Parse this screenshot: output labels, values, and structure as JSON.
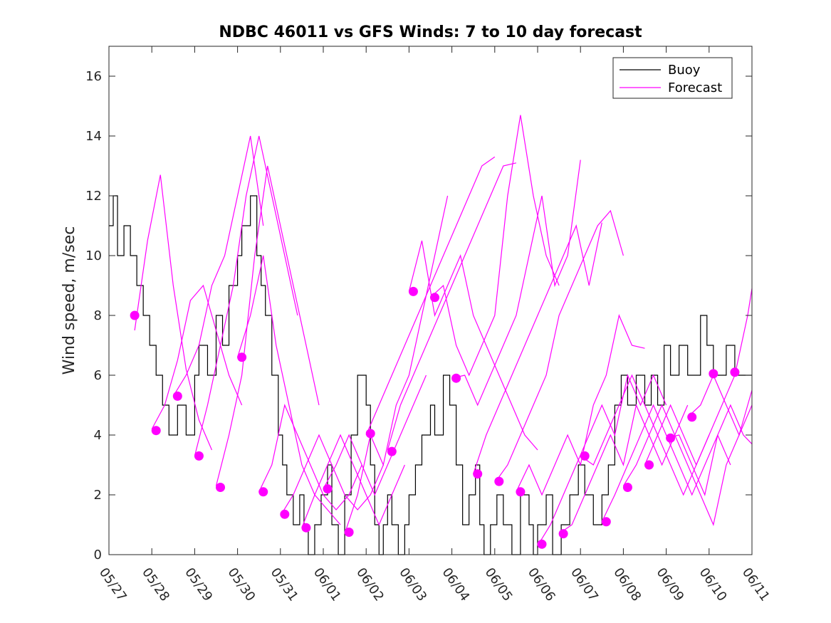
{
  "chart_data": {
    "type": "line",
    "title": "NDBC 46011 vs GFS Winds: 7 to 10 day forecast",
    "xlabel": "",
    "ylabel": "Wind speed, m/sec",
    "ylim": [
      0,
      17
    ],
    "xlim": [
      0,
      15
    ],
    "x_tick_labels": [
      "05/27",
      "05/28",
      "05/29",
      "05/30",
      "05/31",
      "06/01",
      "06/02",
      "06/03",
      "06/04",
      "06/05",
      "06/06",
      "06/07",
      "06/08",
      "06/09",
      "06/10",
      "06/11"
    ],
    "y_ticks": [
      0,
      2,
      4,
      6,
      8,
      10,
      12,
      14,
      16
    ],
    "legend": {
      "position": "top-right",
      "entries": [
        "Buoy",
        "Forecast"
      ]
    },
    "colors": {
      "buoy": "#000000",
      "forecast": "#ff00ff",
      "axes": "#262626"
    },
    "series": [
      {
        "name": "Buoy",
        "x": [
          0,
          0.1,
          0.2,
          0.35,
          0.5,
          0.65,
          0.8,
          0.95,
          1.1,
          1.25,
          1.4,
          1.5,
          1.6,
          1.8,
          2.0,
          2.1,
          2.3,
          2.5,
          2.65,
          2.8,
          3.0,
          3.1,
          3.3,
          3.45,
          3.55,
          3.65,
          3.8,
          3.95,
          4.05,
          4.15,
          4.3,
          4.45,
          4.55,
          4.65,
          4.8,
          4.95,
          5.1,
          5.2,
          5.35,
          5.5,
          5.65,
          5.8,
          6.0,
          6.1,
          6.2,
          6.3,
          6.4,
          6.5,
          6.6,
          6.75,
          6.9,
          7.0,
          7.15,
          7.3,
          7.5,
          7.6,
          7.8,
          7.95,
          8.1,
          8.25,
          8.4,
          8.55,
          8.65,
          8.75,
          8.9,
          9.05,
          9.2,
          9.4,
          9.6,
          9.8,
          9.9,
          10.0,
          10.2,
          10.35,
          10.55,
          10.75,
          10.95,
          11.1,
          11.3,
          11.5,
          11.65,
          11.8,
          11.95,
          12.1,
          12.3,
          12.5,
          12.65,
          12.8,
          12.95,
          13.1,
          13.3,
          13.5,
          13.65,
          13.8,
          13.95,
          14.1,
          14.25,
          14.4,
          14.6,
          14.8,
          15.0
        ],
        "values": [
          11,
          12,
          10,
          11,
          10,
          9,
          8,
          7,
          6,
          5,
          4,
          4,
          5,
          4,
          6,
          7,
          6,
          8,
          7,
          9,
          10,
          11,
          12,
          10,
          9,
          8,
          6,
          4,
          3,
          2,
          1,
          2,
          1,
          0,
          1,
          2,
          3,
          1,
          0,
          2,
          4,
          6,
          5,
          3,
          1,
          0,
          1,
          2,
          1,
          0,
          1,
          2,
          3,
          4,
          5,
          4,
          6,
          5,
          3,
          1,
          2,
          3,
          1,
          0,
          1,
          2,
          1,
          0,
          2,
          1,
          0,
          1,
          2,
          0,
          1,
          2,
          3,
          2,
          1,
          2,
          3,
          5,
          6,
          5,
          6,
          5,
          6,
          5,
          7,
          6,
          7,
          6,
          6,
          8,
          7,
          6,
          6,
          7,
          6,
          6,
          6
        ]
      },
      {
        "name": "Forecast",
        "runs": [
          {
            "x": [
              0.6,
              0.9,
              1.2,
              1.5,
              1.8,
              2.1,
              2.4
            ],
            "values": [
              7.5,
              10.5,
              12.7,
              9,
              6.2,
              4.5,
              3.5
            ]
          },
          {
            "x": [
              1.0,
              1.3,
              1.6,
              1.9,
              2.2,
              2.5,
              2.8,
              3.1
            ],
            "values": [
              4.2,
              5,
              6.5,
              8.5,
              9,
              7.5,
              6,
              5
            ]
          },
          {
            "x": [
              1.5,
              1.8,
              2.1,
              2.4,
              2.7,
              3.0,
              3.3,
              3.6
            ],
            "values": [
              5.3,
              6,
              7,
              9,
              10,
              12,
              14,
              11
            ]
          },
          {
            "x": [
              2.0,
              2.3,
              2.6,
              2.9,
              3.2,
              3.5,
              3.8,
              4.1,
              4.4
            ],
            "values": [
              3.3,
              5,
              7,
              9,
              12,
              14,
              12,
              10,
              8
            ]
          },
          {
            "x": [
              2.5,
              2.8,
              3.1,
              3.4,
              3.7,
              4.0,
              4.3,
              4.6,
              4.9
            ],
            "values": [
              2.3,
              4,
              6,
              10,
              13,
              11,
              9,
              7,
              5
            ]
          },
          {
            "x": [
              3.0,
              3.3,
              3.6,
              3.9,
              4.2,
              4.5,
              4.8,
              5.1,
              5.4
            ],
            "values": [
              6.6,
              8,
              10,
              7,
              5,
              3,
              2,
              1.5,
              1
            ]
          },
          {
            "x": [
              3.5,
              3.8,
              4.1,
              4.4,
              4.7,
              5.0,
              5.3,
              5.6,
              5.9
            ],
            "values": [
              2.1,
              3,
              5,
              4,
              3,
              2,
              1.5,
              2,
              3
            ]
          },
          {
            "x": [
              4.0,
              4.3,
              4.6,
              4.9,
              5.2,
              5.5,
              5.8,
              6.1,
              6.4
            ],
            "values": [
              1.3,
              2,
              3,
              4,
              3,
              2,
              1.5,
              2,
              3
            ]
          },
          {
            "x": [
              4.5,
              4.8,
              5.1,
              5.4,
              5.7,
              6.0,
              6.3,
              6.6,
              6.9
            ],
            "values": [
              0.9,
              2,
              3,
              4,
              3,
              2,
              1,
              2,
              3
            ]
          },
          {
            "x": [
              5.0,
              5.3,
              5.6,
              5.9,
              6.2,
              6.5,
              6.8,
              7.1,
              7.4
            ],
            "values": [
              2.2,
              3,
              4,
              3,
              2,
              3,
              4,
              5,
              6
            ]
          },
          {
            "x": [
              5.5,
              5.8,
              6.1,
              6.4,
              6.7,
              7.0,
              7.3,
              7.6,
              7.9
            ],
            "values": [
              0.7,
              2,
              4,
              3,
              5,
              6,
              8,
              10,
              12
            ]
          },
          {
            "x": [
              6.0,
              6.3,
              6.6,
              6.9,
              7.2,
              7.5,
              7.8,
              8.1,
              8.4,
              8.7,
              9.0
            ],
            "values": [
              4.0,
              5,
              6,
              7,
              8,
              9,
              10,
              11,
              12,
              13,
              13.3
            ]
          },
          {
            "x": [
              6.5,
              6.8,
              7.1,
              7.4,
              7.7,
              8.0,
              8.3,
              8.6,
              8.9,
              9.2,
              9.5
            ],
            "values": [
              3.5,
              5,
              6,
              7,
              8,
              9,
              10,
              11,
              12,
              13,
              13.1
            ]
          },
          {
            "x": [
              7.0,
              7.3,
              7.6,
              7.9,
              8.2,
              8.5,
              8.8,
              9.1,
              9.4,
              9.7,
              10.0
            ],
            "values": [
              8.8,
              10.5,
              8,
              9,
              10,
              8,
              7,
              6,
              5,
              4,
              3.5
            ]
          },
          {
            "x": [
              7.5,
              7.8,
              8.1,
              8.4,
              8.7,
              9.0,
              9.3,
              9.6,
              9.9,
              10.2,
              10.5
            ],
            "values": [
              8.6,
              9,
              7,
              6,
              7,
              8,
              12,
              14.7,
              12,
              10,
              9
            ]
          },
          {
            "x": [
              8.0,
              8.3,
              8.6,
              8.9,
              9.2,
              9.5,
              9.8,
              10.1,
              10.4,
              10.7,
              11.0
            ],
            "values": [
              5.9,
              6,
              5,
              6,
              7,
              8,
              10,
              12,
              9,
              10,
              13.2
            ]
          },
          {
            "x": [
              8.5,
              8.8,
              9.1,
              9.4,
              9.7,
              10.0,
              10.3,
              10.6,
              10.9,
              11.2,
              11.5
            ],
            "values": [
              2.7,
              4,
              5,
              6,
              7,
              8,
              9,
              10,
              11,
              9,
              11.1
            ]
          },
          {
            "x": [
              9.0,
              9.3,
              9.6,
              9.9,
              10.2,
              10.5,
              10.8,
              11.1,
              11.4,
              11.7,
              12.0
            ],
            "values": [
              2.4,
              3,
              4,
              5,
              6,
              8,
              9,
              10,
              11,
              11.5,
              10
            ]
          },
          {
            "x": [
              9.5,
              9.8,
              10.1,
              10.4,
              10.7,
              11.0,
              11.3,
              11.6,
              11.9,
              12.2,
              12.5
            ],
            "values": [
              2.1,
              3,
              2,
              3,
              4,
              3,
              5,
              6,
              8,
              7,
              6.9
            ]
          },
          {
            "x": [
              10.0,
              10.3,
              10.6,
              10.9,
              11.2,
              11.5,
              11.8,
              12.1,
              12.4,
              12.7,
              13.0
            ],
            "values": [
              0.3,
              1,
              2,
              3,
              4,
              5,
              4,
              6,
              5,
              6,
              5
            ]
          },
          {
            "x": [
              10.5,
              10.8,
              11.1,
              11.4,
              11.7,
              12.0,
              12.3,
              12.6,
              12.9,
              13.2,
              13.5
            ],
            "values": [
              0.7,
              1,
              2,
              3,
              4,
              3,
              5,
              4,
              3,
              4,
              5
            ]
          },
          {
            "x": [
              11.0,
              11.3,
              11.6,
              11.9,
              12.2,
              12.5,
              12.8,
              13.1,
              13.4,
              13.7,
              14.0
            ],
            "values": [
              3.3,
              3,
              4,
              5,
              6,
              5,
              4,
              3,
              2,
              3,
              4
            ]
          },
          {
            "x": [
              11.5,
              11.8,
              12.1,
              12.4,
              12.7,
              13.0,
              13.3,
              13.6,
              13.9,
              14.2,
              14.5
            ],
            "values": [
              1.1,
              2,
              3,
              4,
              5,
              4,
              3,
              2,
              3,
              4,
              3
            ]
          },
          {
            "x": [
              12.0,
              12.3,
              12.6,
              12.9,
              13.2,
              13.5,
              13.8,
              14.1,
              14.4,
              14.7,
              15.0
            ],
            "values": [
              2.3,
              3,
              4,
              5,
              4,
              3,
              2,
              1,
              3,
              4,
              5
            ]
          },
          {
            "x": [
              12.5,
              12.8,
              13.1,
              13.4,
              13.7,
              14.0,
              14.3,
              14.6,
              14.9,
              15.0
            ],
            "values": [
              3.0,
              4,
              5,
              4,
              3,
              4,
              5,
              6,
              8,
              8.9
            ]
          },
          {
            "x": [
              13.0,
              13.3,
              13.6,
              13.9,
              14.2,
              14.5,
              14.8,
              15.0
            ],
            "values": [
              3.9,
              4,
              3,
              2,
              4,
              5,
              4,
              3.7
            ]
          },
          {
            "x": [
              13.5,
              13.8,
              14.1,
              14.4,
              14.7,
              15.0
            ],
            "values": [
              4.6,
              5,
              6,
              5,
              4,
              5.5
            ]
          }
        ]
      },
      {
        "name": "Forecast markers",
        "x": [
          0.6,
          1.1,
          1.6,
          2.1,
          2.6,
          3.1,
          3.6,
          4.1,
          4.6,
          5.1,
          5.6,
          6.1,
          6.6,
          7.1,
          7.6,
          8.1,
          8.6,
          9.1,
          9.6,
          10.1,
          10.6,
          11.1,
          11.6,
          12.1,
          12.6,
          13.1,
          13.6,
          14.1,
          14.6
        ],
        "values": [
          8.0,
          4.15,
          5.3,
          3.3,
          2.25,
          6.6,
          2.1,
          1.35,
          0.9,
          2.2,
          0.75,
          4.05,
          3.45,
          8.8,
          8.6,
          5.9,
          2.7,
          2.45,
          2.1,
          0.35,
          0.7,
          3.3,
          1.1,
          2.25,
          3.0,
          3.9,
          4.6,
          6.05,
          6.1
        ]
      }
    ]
  }
}
